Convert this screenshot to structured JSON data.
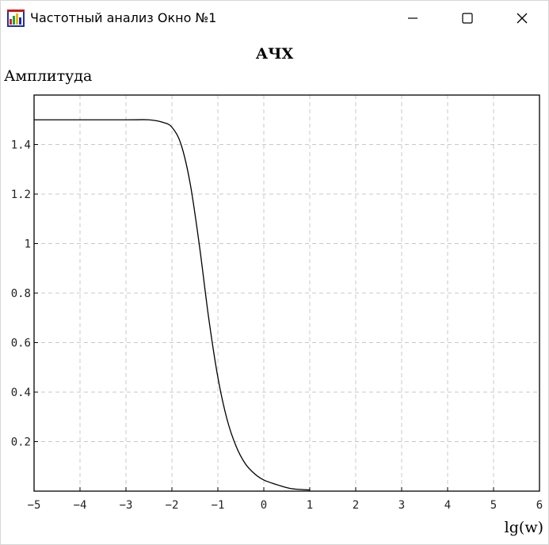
{
  "window": {
    "title": "Частотный анализ Окно №1",
    "icon": "app-chart-icon",
    "buttons": {
      "minimize": "minimize-icon",
      "maximize": "maximize-icon",
      "close": "close-icon"
    }
  },
  "chart_data": {
    "type": "line",
    "title": "АЧХ",
    "ylabel": "Амплитуда",
    "xlabel": "lg(w)",
    "xlim": [
      -5,
      6
    ],
    "ylim": [
      0,
      1.6
    ],
    "xticks": [
      -5,
      -4,
      -3,
      -2,
      -1,
      0,
      1,
      2,
      3,
      4,
      5,
      6
    ],
    "xtick_labels": [
      "−5",
      "−4",
      "−3",
      "−2",
      "−1",
      "0",
      "1",
      "2",
      "3",
      "4",
      "5",
      "6"
    ],
    "yticks": [
      0.2,
      0.4,
      0.6,
      0.8,
      1,
      1.2,
      1.4
    ],
    "ytick_labels": [
      "0.2",
      "0.4",
      "0.6",
      "0.8",
      "1",
      "1.2",
      "1.4"
    ],
    "grid": true,
    "line_color": "#000000",
    "series": [
      {
        "x": [
          -5,
          -3,
          -2.5,
          -2.2,
          -2,
          -1.8,
          -1.6,
          -1.4,
          -1.2,
          -1,
          -0.8,
          -0.6,
          -0.4,
          -0.2,
          0,
          0.3,
          0.6,
          1
        ],
        "y": [
          1.5,
          1.5,
          1.5,
          1.49,
          1.47,
          1.4,
          1.24,
          0.99,
          0.7,
          0.46,
          0.29,
          0.18,
          0.11,
          0.07,
          0.045,
          0.025,
          0.01,
          0.005
        ]
      }
    ]
  }
}
